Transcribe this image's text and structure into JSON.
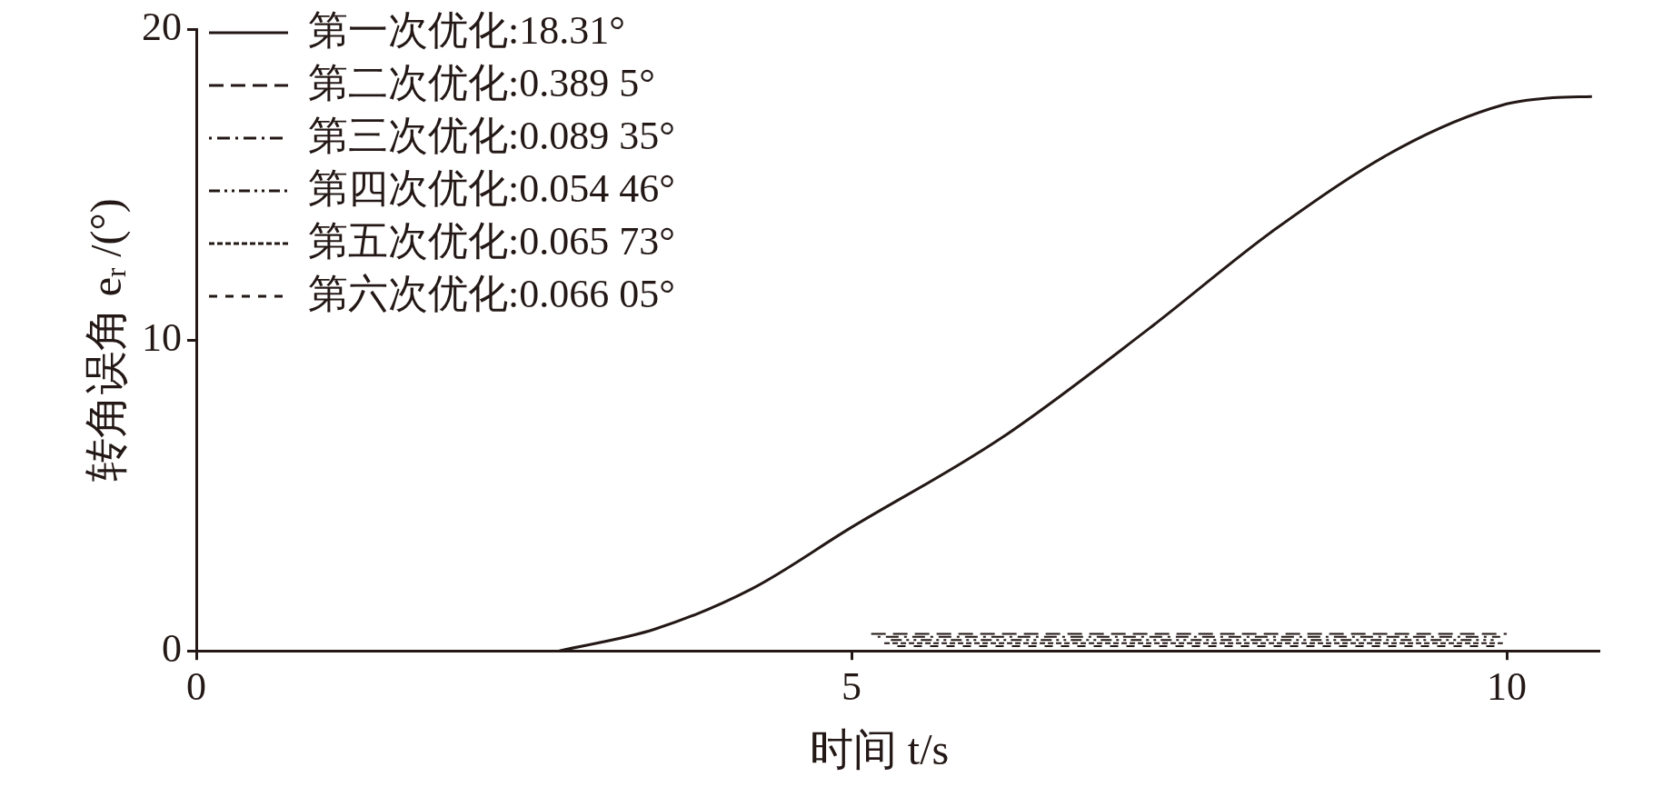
{
  "chart_data": {
    "type": "line",
    "xlabel": "时间 t/s",
    "ylabel": "转角误角 e$_{r}$ /(°)",
    "xlim": [
      0,
      10.7
    ],
    "xticks": [
      0,
      5,
      10
    ],
    "ylim": [
      0,
      20
    ],
    "yticks": [
      0,
      10,
      20
    ],
    "grid": false,
    "legend": "top left",
    "marker": "none",
    "series": [
      {
        "name": "第一次优化:18.31°",
        "color": "#231815",
        "line_style": "solid",
        "x": [
          2.77,
          3.5,
          4.24,
          4.99,
          6.14,
          7.27,
          8.23,
          9.19,
          9.97,
          10.35,
          10.65
        ],
        "values": [
          0,
          0.7,
          2.0,
          3.95,
          6.84,
          10.37,
          13.56,
          16.2,
          17.57,
          17.8,
          17.84
        ]
      },
      {
        "name": "第二次优化:0.389 5°",
        "color": "#231815",
        "line_style": "dashed",
        "x": [
          5.15,
          10
        ],
        "values": [
          0.55,
          0.55
        ]
      },
      {
        "name": "第三次优化:0.089 35°",
        "color": "#231815",
        "line_style": "dashed",
        "x": [
          5.2,
          9.95
        ],
        "values": [
          0.45,
          0.45
        ]
      },
      {
        "name": "第四次优化:0.054 46°",
        "color": "#231815",
        "line_style": "dashed",
        "x": [
          5.3,
          9.9
        ],
        "values": [
          0.35,
          0.35
        ]
      },
      {
        "name": "第五次优化:0.065 73°",
        "color": "#231815",
        "line_style": "dashed",
        "x": [
          5.25,
          9.97
        ],
        "values": [
          0.25,
          0.25
        ]
      },
      {
        "name": "第六次优化:0.066 05°",
        "color": "#231815",
        "line_style": "dashed",
        "x": [
          5.35,
          9.93
        ],
        "values": [
          0.15,
          0.15
        ]
      }
    ]
  }
}
